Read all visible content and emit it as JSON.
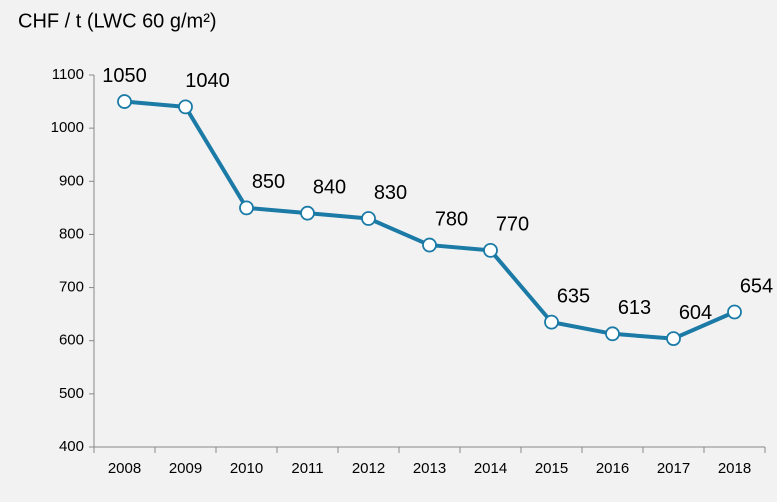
{
  "chart_data": {
    "type": "line",
    "title": "CHF / t (LWC 60 g/m²)",
    "categories": [
      "2008",
      "2009",
      "2010",
      "2011",
      "2012",
      "2013",
      "2014",
      "2015",
      "2016",
      "2017",
      "2018"
    ],
    "values": [
      1050,
      1040,
      850,
      840,
      830,
      780,
      770,
      635,
      613,
      604,
      654
    ],
    "color": "#1b7aa6",
    "ylim": [
      400,
      1100
    ],
    "yticks": [
      400,
      500,
      600,
      700,
      800,
      900,
      1000,
      1100
    ],
    "grid": false
  }
}
